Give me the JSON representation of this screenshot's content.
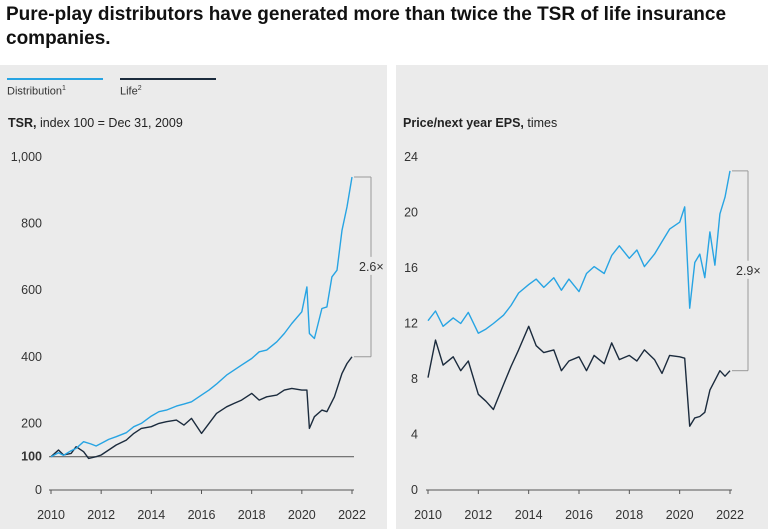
{
  "header": {
    "title": "Pure-play distributors have generated more than twice the TSR of life insurance companies."
  },
  "legend": [
    {
      "label": "Distribution",
      "sup": "1",
      "color": "#27a4e3"
    },
    {
      "label": "Life",
      "sup": "2",
      "color": "#1b2b3d"
    }
  ],
  "chart_data": [
    {
      "type": "line",
      "title_bold": "TSR,",
      "title_rest": " index 100 = Dec 31, 2009",
      "xlim": [
        2010,
        2022
      ],
      "ylim": [
        0,
        1000
      ],
      "x_ticks": [
        "2010",
        "2012",
        "2014",
        "2016",
        "2018",
        "2020",
        "2022"
      ],
      "y_ticks": [
        "0",
        "100",
        "200",
        "400",
        "600",
        "800",
        "1,000"
      ],
      "baseline": 100,
      "annotation": "2.6×",
      "series": [
        {
          "name": "Distribution",
          "color": "#27a4e3",
          "x": [
            2010,
            2010.3,
            2010.5,
            2010.8,
            2011,
            2011.3,
            2011.6,
            2011.8,
            2012,
            2012.3,
            2012.6,
            2013,
            2013.3,
            2013.6,
            2014,
            2014.3,
            2014.6,
            2015,
            2015.3,
            2015.6,
            2016,
            2016.3,
            2016.6,
            2017,
            2017.3,
            2017.6,
            2018,
            2018.3,
            2018.6,
            2019,
            2019.3,
            2019.6,
            2020,
            2020.2,
            2020.3,
            2020.5,
            2020.8,
            2021,
            2021.2,
            2021.4,
            2021.6,
            2021.8,
            2022
          ],
          "y": [
            100,
            112,
            104,
            118,
            125,
            145,
            138,
            132,
            140,
            152,
            160,
            172,
            190,
            200,
            222,
            235,
            240,
            252,
            258,
            265,
            285,
            300,
            318,
            345,
            360,
            375,
            395,
            415,
            420,
            445,
            470,
            500,
            535,
            610,
            470,
            455,
            545,
            550,
            640,
            660,
            780,
            850,
            940
          ]
        },
        {
          "name": "Life",
          "color": "#1b2b3d",
          "x": [
            2010,
            2010.3,
            2010.5,
            2010.8,
            2011,
            2011.3,
            2011.5,
            2011.8,
            2012,
            2012.3,
            2012.6,
            2013,
            2013.3,
            2013.6,
            2014,
            2014.3,
            2014.6,
            2015,
            2015.3,
            2015.6,
            2016,
            2016.3,
            2016.6,
            2017,
            2017.3,
            2017.6,
            2018,
            2018.3,
            2018.6,
            2019,
            2019.3,
            2019.6,
            2020,
            2020.2,
            2020.3,
            2020.5,
            2020.8,
            2021,
            2021.3,
            2021.6,
            2021.8,
            2022
          ],
          "y": [
            100,
            120,
            105,
            110,
            130,
            115,
            95,
            100,
            105,
            120,
            135,
            150,
            170,
            185,
            190,
            200,
            205,
            210,
            195,
            215,
            170,
            200,
            230,
            250,
            260,
            270,
            290,
            270,
            280,
            285,
            300,
            305,
            300,
            300,
            185,
            220,
            240,
            235,
            280,
            350,
            380,
            400
          ]
        }
      ]
    },
    {
      "type": "line",
      "title_bold": "Price/next year EPS,",
      "title_rest": " times",
      "xlim": [
        2010,
        2022
      ],
      "ylim": [
        0,
        24
      ],
      "x_ticks": [
        "2010",
        "2012",
        "2014",
        "2016",
        "2018",
        "2020",
        "2022"
      ],
      "y_ticks": [
        "0",
        "4",
        "8",
        "12",
        "16",
        "20",
        "24"
      ],
      "annotation": "2.9×",
      "series": [
        {
          "name": "Distribution",
          "color": "#27a4e3",
          "x": [
            2010,
            2010.3,
            2010.6,
            2011,
            2011.3,
            2011.6,
            2012,
            2012.3,
            2012.6,
            2013,
            2013.3,
            2013.6,
            2014,
            2014.3,
            2014.6,
            2015,
            2015.3,
            2015.6,
            2016,
            2016.3,
            2016.6,
            2017,
            2017.3,
            2017.6,
            2018,
            2018.3,
            2018.6,
            2019,
            2019.3,
            2019.6,
            2020,
            2020.2,
            2020.4,
            2020.6,
            2020.8,
            2021,
            2021.2,
            2021.4,
            2021.6,
            2021.8,
            2022
          ],
          "y": [
            12.2,
            12.9,
            11.8,
            12.4,
            12.0,
            12.8,
            11.3,
            11.6,
            12.0,
            12.6,
            13.3,
            14.2,
            14.8,
            15.2,
            14.6,
            15.3,
            14.4,
            15.2,
            14.3,
            15.6,
            16.1,
            15.6,
            16.9,
            17.6,
            16.7,
            17.3,
            16.1,
            17.0,
            17.9,
            18.8,
            19.3,
            20.4,
            13.1,
            16.4,
            17.0,
            15.3,
            18.6,
            16.2,
            19.9,
            21.1,
            23.0
          ]
        },
        {
          "name": "Life",
          "color": "#1b2b3d",
          "x": [
            2010,
            2010.3,
            2010.6,
            2011,
            2011.3,
            2011.6,
            2012,
            2012.3,
            2012.6,
            2013,
            2013.3,
            2013.6,
            2014,
            2014.3,
            2014.6,
            2015,
            2015.3,
            2015.6,
            2016,
            2016.3,
            2016.6,
            2017,
            2017.3,
            2017.6,
            2018,
            2018.3,
            2018.6,
            2019,
            2019.3,
            2019.6,
            2020,
            2020.2,
            2020.4,
            2020.6,
            2020.8,
            2021,
            2021.2,
            2021.4,
            2021.6,
            2021.8,
            2022
          ],
          "y": [
            8.1,
            10.8,
            9.0,
            9.6,
            8.6,
            9.3,
            6.9,
            6.4,
            5.8,
            7.6,
            8.9,
            10.1,
            11.8,
            10.4,
            9.9,
            10.1,
            8.6,
            9.3,
            9.6,
            8.6,
            9.7,
            9.1,
            10.6,
            9.4,
            9.7,
            9.3,
            10.1,
            9.4,
            8.4,
            9.7,
            9.6,
            9.5,
            4.6,
            5.2,
            5.3,
            5.6,
            7.2,
            7.9,
            8.6,
            8.2,
            8.6
          ]
        }
      ]
    }
  ]
}
